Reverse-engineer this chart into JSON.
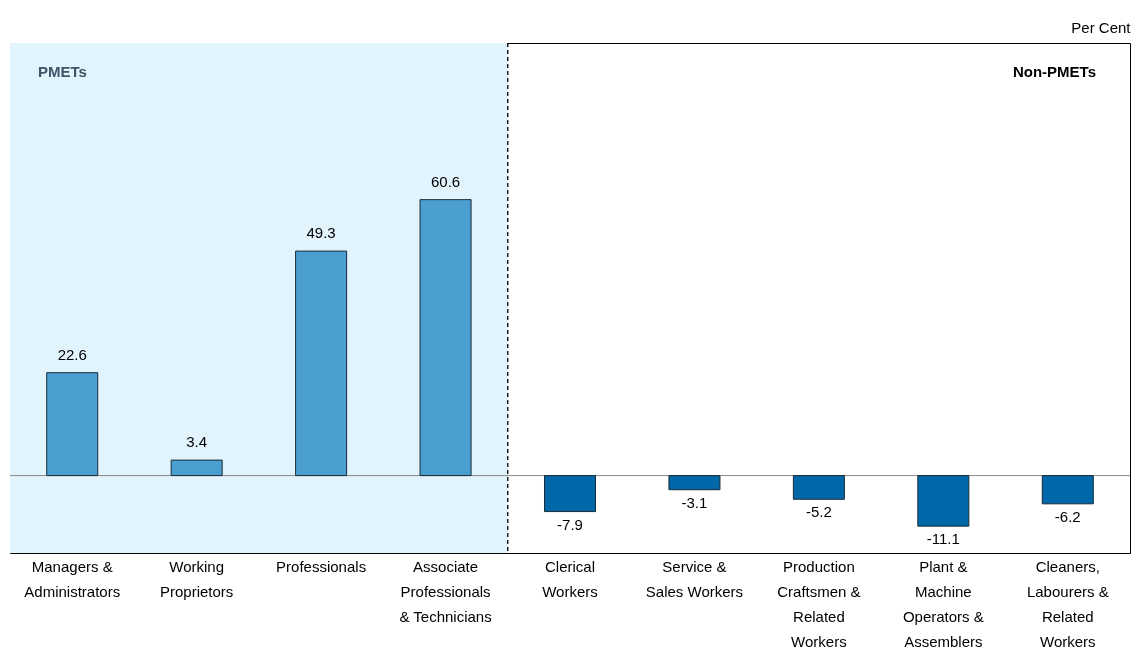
{
  "chart_data": {
    "type": "bar",
    "ylabel": "Per Cent",
    "categories": [
      "Managers & Administrators",
      "Working Proprietors",
      "Professionals",
      "Associate Professionals & Technicians",
      "Clerical Workers",
      "Service & Sales Workers",
      "Production Craftsmen & Related Workers",
      "Plant & Machine Operators & Assemblers",
      "Cleaners, Labourers & Related Workers"
    ],
    "values": [
      22.6,
      3.4,
      49.3,
      60.6,
      -7.9,
      -3.1,
      -5.2,
      -11.1,
      -6.2
    ],
    "colors": [
      "#4a9fd0",
      "#4a9fd0",
      "#4a9fd0",
      "#4a9fd0",
      "#0068a8",
      "#0068a8",
      "#0068a8",
      "#0068a8",
      "#0068a8"
    ],
    "data_labels": true,
    "ylim": [
      -17,
      95
    ],
    "tick_labels": "x",
    "ref_lines": [
      {
        "axis": "y",
        "value": 0,
        "color": "#888888"
      }
    ],
    "bands": [
      {
        "axis": "x",
        "from": "Managers & Administrators",
        "to": "Associate Professionals & Technicians",
        "label": "PMETs",
        "color": "#e1f3fc"
      }
    ],
    "annotations": [
      "Non-PMETs"
    ]
  }
}
